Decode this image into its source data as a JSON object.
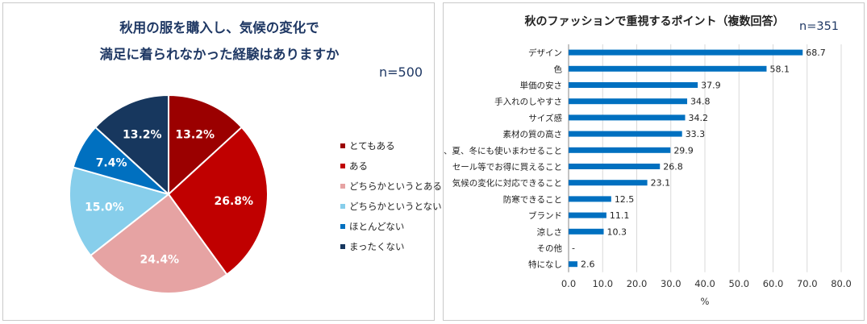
{
  "chart_data": [
    {
      "type": "pie",
      "title_lines": [
        "秋用の服を購入し、気候の変化で",
        "満足に着られなかった経験はありますか"
      ],
      "n_label": "n=500",
      "slices": [
        {
          "label": "とてもある",
          "value": 13.2,
          "value_label": "13.2%",
          "color": "#9b0000"
        },
        {
          "label": "ある",
          "value": 26.8,
          "value_label": "26.8%",
          "color": "#c00000"
        },
        {
          "label": "どちらかというとある",
          "value": 24.4,
          "value_label": "24.4%",
          "color": "#e6a3a3"
        },
        {
          "label": "どちらかというとない",
          "value": 15.0,
          "value_label": "15.0%",
          "color": "#87ceeb"
        },
        {
          "label": "ほとんどない",
          "value": 7.4,
          "value_label": "7.4%",
          "color": "#0070c0"
        },
        {
          "label": "まったくない",
          "value": 13.2,
          "value_label": "13.2%",
          "color": "#17375e"
        }
      ]
    },
    {
      "type": "bar",
      "orientation": "horizontal",
      "title": "秋のファッションで重視するポイント（複数回答）",
      "n_label": "n=351",
      "xlabel": "%",
      "xlim": [
        0,
        80
      ],
      "grid": true,
      "bar_color": "#0070c0",
      "categories": [
        "デザイン",
        "色",
        "単価の安さ",
        "手入れのしやすさ",
        "サイズ感",
        "素材の質の高さ",
        "春、夏、冬にも使いまわせること",
        "セール等でお得に買えること",
        "気候の変化に対応できること",
        "防寒できること",
        "ブランド",
        "涼しさ",
        "その他",
        "特になし"
      ],
      "values": [
        68.7,
        58.1,
        37.9,
        34.8,
        34.2,
        33.3,
        29.9,
        26.8,
        23.1,
        12.5,
        11.1,
        10.3,
        null,
        2.6
      ],
      "value_labels": [
        "68.7",
        "58.1",
        "37.9",
        "34.8",
        "34.2",
        "33.3",
        "29.9",
        "26.8",
        "23.1",
        "12.5",
        "11.1",
        "10.3",
        "-",
        "2.6"
      ],
      "x_ticks": [
        "0.0",
        "10.0",
        "20.0",
        "30.0",
        "40.0",
        "50.0",
        "60.0",
        "70.0",
        "80.0"
      ]
    }
  ]
}
